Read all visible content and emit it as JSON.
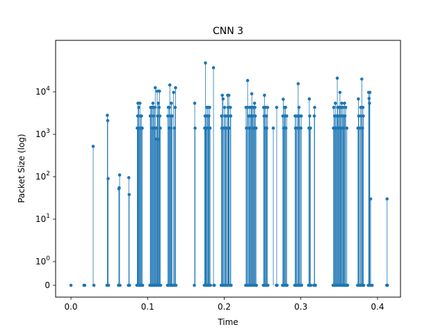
{
  "chart_data": {
    "type": "stem",
    "title": "CNN 3",
    "xlabel": "Time",
    "ylabel": "Packet Size (log)",
    "yscale": "symlog",
    "xlim": [
      -0.02,
      0.43
    ],
    "ylim": [
      -0.5,
      60000
    ],
    "xticks": [
      {
        "value": 0.0,
        "label": "0.0"
      },
      {
        "value": 0.1,
        "label": "0.1"
      },
      {
        "value": 0.2,
        "label": "0.2"
      },
      {
        "value": 0.3,
        "label": "0.3"
      },
      {
        "value": 0.4,
        "label": "0.4"
      }
    ],
    "yticks": [
      {
        "value": 0,
        "label": "0"
      },
      {
        "value": 1,
        "label": "10",
        "exp": "0"
      },
      {
        "value": 10,
        "label": "10",
        "exp": "1"
      },
      {
        "value": 100,
        "label": "10",
        "exp": "2"
      },
      {
        "value": 1000,
        "label": "10",
        "exp": "3"
      },
      {
        "value": 10000,
        "label": "10",
        "exp": "4"
      }
    ],
    "color": "#1f77b4",
    "grid": false,
    "legend": "none",
    "points": [
      [
        0.0,
        0
      ],
      [
        0.017,
        0
      ],
      [
        0.018,
        0
      ],
      [
        0.029,
        520
      ],
      [
        0.03,
        0
      ],
      [
        0.047,
        0
      ],
      [
        0.0475,
        2800
      ],
      [
        0.048,
        2100
      ],
      [
        0.0485,
        90
      ],
      [
        0.049,
        0
      ],
      [
        0.062,
        0
      ],
      [
        0.0625,
        52
      ],
      [
        0.063,
        55
      ],
      [
        0.0635,
        110
      ],
      [
        0.064,
        0
      ],
      [
        0.075,
        0
      ],
      [
        0.0755,
        95
      ],
      [
        0.076,
        38
      ],
      [
        0.0765,
        0
      ],
      [
        0.086,
        0
      ],
      [
        0.0865,
        1400
      ],
      [
        0.087,
        2700
      ],
      [
        0.0875,
        5400
      ],
      [
        0.088,
        1400
      ],
      [
        0.0885,
        4300
      ],
      [
        0.089,
        0
      ],
      [
        0.0895,
        1400
      ],
      [
        0.09,
        5400
      ],
      [
        0.0905,
        2700
      ],
      [
        0.091,
        0
      ],
      [
        0.0915,
        1400
      ],
      [
        0.092,
        2700
      ],
      [
        0.0925,
        0
      ],
      [
        0.093,
        1400
      ],
      [
        0.0935,
        0
      ],
      [
        0.103,
        0
      ],
      [
        0.1035,
        2700
      ],
      [
        0.104,
        4300
      ],
      [
        0.1045,
        0
      ],
      [
        0.105,
        4300
      ],
      [
        0.1055,
        4300
      ],
      [
        0.106,
        1400
      ],
      [
        0.1065,
        0
      ],
      [
        0.107,
        5400
      ],
      [
        0.1075,
        2700
      ],
      [
        0.108,
        4300
      ],
      [
        0.1085,
        0
      ],
      [
        0.109,
        1400
      ],
      [
        0.1095,
        4300
      ],
      [
        0.11,
        12500
      ],
      [
        0.1105,
        0
      ],
      [
        0.111,
        770
      ],
      [
        0.1115,
        1400
      ],
      [
        0.112,
        0
      ],
      [
        0.1125,
        10400
      ],
      [
        0.113,
        2700
      ],
      [
        0.1135,
        760
      ],
      [
        0.114,
        5400
      ],
      [
        0.1145,
        0
      ],
      [
        0.115,
        4300
      ],
      [
        0.1155,
        10400
      ],
      [
        0.116,
        2700
      ],
      [
        0.1165,
        1400
      ],
      [
        0.117,
        0
      ],
      [
        0.126,
        0
      ],
      [
        0.1265,
        2700
      ],
      [
        0.127,
        4300
      ],
      [
        0.1275,
        0
      ],
      [
        0.128,
        1400
      ],
      [
        0.1285,
        4300
      ],
      [
        0.129,
        14500
      ],
      [
        0.1295,
        0
      ],
      [
        0.13,
        2700
      ],
      [
        0.1305,
        1400
      ],
      [
        0.131,
        5400
      ],
      [
        0.1315,
        0
      ],
      [
        0.132,
        2700
      ],
      [
        0.1325,
        0
      ],
      [
        0.134,
        9700
      ],
      [
        0.1345,
        0
      ],
      [
        0.135,
        1400
      ],
      [
        0.1355,
        0
      ],
      [
        0.136,
        4300
      ],
      [
        0.1365,
        12500
      ],
      [
        0.137,
        0
      ],
      [
        0.161,
        0
      ],
      [
        0.1615,
        5400
      ],
      [
        0.162,
        1400
      ],
      [
        0.174,
        0
      ],
      [
        0.1745,
        1400
      ],
      [
        0.175,
        2700
      ],
      [
        0.1755,
        48000
      ],
      [
        0.176,
        2700
      ],
      [
        0.1765,
        1400
      ],
      [
        0.177,
        0
      ],
      [
        0.1775,
        4300
      ],
      [
        0.178,
        2700
      ],
      [
        0.1785,
        0
      ],
      [
        0.179,
        4300
      ],
      [
        0.1795,
        1400
      ],
      [
        0.18,
        2700
      ],
      [
        0.1805,
        0
      ],
      [
        0.181,
        4300
      ],
      [
        0.1815,
        1400
      ],
      [
        0.182,
        0
      ],
      [
        0.186,
        37000
      ],
      [
        0.1865,
        0
      ],
      [
        0.187,
        0
      ],
      [
        0.196,
        0
      ],
      [
        0.1965,
        2700
      ],
      [
        0.197,
        1400
      ],
      [
        0.1975,
        8300
      ],
      [
        0.198,
        0
      ],
      [
        0.1985,
        6800
      ],
      [
        0.199,
        1400
      ],
      [
        0.2,
        0
      ],
      [
        0.2005,
        4300
      ],
      [
        0.201,
        2700
      ],
      [
        0.2015,
        1400
      ],
      [
        0.202,
        0
      ],
      [
        0.2025,
        2700
      ],
      [
        0.203,
        1400
      ],
      [
        0.204,
        0
      ],
      [
        0.2045,
        8300
      ],
      [
        0.205,
        4300
      ],
      [
        0.2055,
        2700
      ],
      [
        0.206,
        8300
      ],
      [
        0.2065,
        1400
      ],
      [
        0.207,
        0
      ],
      [
        0.208,
        4300
      ],
      [
        0.2085,
        2700
      ],
      [
        0.209,
        0
      ],
      [
        0.228,
        0
      ],
      [
        0.2285,
        4300
      ],
      [
        0.229,
        1400
      ],
      [
        0.2295,
        0
      ],
      [
        0.23,
        4300
      ],
      [
        0.2305,
        18500
      ],
      [
        0.231,
        0
      ],
      [
        0.232,
        2700
      ],
      [
        0.2325,
        1400
      ],
      [
        0.233,
        4300
      ],
      [
        0.2335,
        0
      ],
      [
        0.234,
        1400
      ],
      [
        0.2345,
        2700
      ],
      [
        0.235,
        4300
      ],
      [
        0.2355,
        0
      ],
      [
        0.236,
        9000
      ],
      [
        0.2365,
        4300
      ],
      [
        0.237,
        0
      ],
      [
        0.2375,
        2700
      ],
      [
        0.238,
        4300
      ],
      [
        0.2385,
        1400
      ],
      [
        0.239,
        0
      ],
      [
        0.2395,
        5400
      ],
      [
        0.24,
        4300
      ],
      [
        0.2405,
        2700
      ],
      [
        0.241,
        0
      ],
      [
        0.2415,
        1400
      ],
      [
        0.242,
        0
      ],
      [
        0.251,
        0
      ],
      [
        0.2515,
        4300
      ],
      [
        0.252,
        2700
      ],
      [
        0.2525,
        8300
      ],
      [
        0.253,
        0
      ],
      [
        0.2535,
        1400
      ],
      [
        0.254,
        4300
      ],
      [
        0.2545,
        0
      ],
      [
        0.255,
        2700
      ],
      [
        0.2555,
        1400
      ],
      [
        0.256,
        0
      ],
      [
        0.2565,
        4300
      ],
      [
        0.257,
        0
      ],
      [
        0.264,
        1400
      ],
      [
        0.268,
        0
      ],
      [
        0.2685,
        4300
      ],
      [
        0.269,
        0
      ],
      [
        0.276,
        0
      ],
      [
        0.2765,
        2700
      ],
      [
        0.277,
        6700
      ],
      [
        0.2775,
        1400
      ],
      [
        0.278,
        0
      ],
      [
        0.2785,
        4300
      ],
      [
        0.279,
        2700
      ],
      [
        0.2795,
        0
      ],
      [
        0.28,
        4300
      ],
      [
        0.2805,
        1400
      ],
      [
        0.281,
        0
      ],
      [
        0.2815,
        2700
      ],
      [
        0.282,
        0
      ],
      [
        0.292,
        0
      ],
      [
        0.2925,
        2700
      ],
      [
        0.293,
        1400
      ],
      [
        0.2935,
        0
      ],
      [
        0.294,
        2700
      ],
      [
        0.2945,
        1400
      ],
      [
        0.295,
        0
      ],
      [
        0.296,
        2700
      ],
      [
        0.2965,
        15500
      ],
      [
        0.297,
        0
      ],
      [
        0.2975,
        4300
      ],
      [
        0.298,
        1400
      ],
      [
        0.2985,
        2700
      ],
      [
        0.299,
        0
      ],
      [
        0.3,
        1400
      ],
      [
        0.3005,
        2700
      ],
      [
        0.301,
        0
      ],
      [
        0.31,
        0
      ],
      [
        0.3105,
        1400
      ],
      [
        0.311,
        6800
      ],
      [
        0.3115,
        2700
      ],
      [
        0.312,
        0
      ],
      [
        0.3125,
        1400
      ],
      [
        0.313,
        0
      ],
      [
        0.317,
        0
      ],
      [
        0.3175,
        2700
      ],
      [
        0.318,
        4300
      ],
      [
        0.3185,
        0
      ],
      [
        0.319,
        0
      ],
      [
        0.342,
        0
      ],
      [
        0.3425,
        1400
      ],
      [
        0.343,
        4300
      ],
      [
        0.3435,
        0
      ],
      [
        0.344,
        2700
      ],
      [
        0.3445,
        1400
      ],
      [
        0.345,
        5400
      ],
      [
        0.3455,
        0
      ],
      [
        0.346,
        1400
      ],
      [
        0.3465,
        2700
      ],
      [
        0.347,
        0
      ],
      [
        0.3475,
        21000
      ],
      [
        0.348,
        4300
      ],
      [
        0.3485,
        0
      ],
      [
        0.349,
        2700
      ],
      [
        0.3495,
        1400
      ],
      [
        0.35,
        4300
      ],
      [
        0.3505,
        0
      ],
      [
        0.351,
        9700
      ],
      [
        0.3515,
        2700
      ],
      [
        0.352,
        4300
      ],
      [
        0.3525,
        1400
      ],
      [
        0.353,
        0
      ],
      [
        0.3535,
        5400
      ],
      [
        0.354,
        2700
      ],
      [
        0.3545,
        0
      ],
      [
        0.355,
        4300
      ],
      [
        0.3555,
        1400
      ],
      [
        0.356,
        2700
      ],
      [
        0.3565,
        0
      ],
      [
        0.357,
        5400
      ],
      [
        0.3575,
        2700
      ],
      [
        0.358,
        0
      ],
      [
        0.3585,
        4300
      ],
      [
        0.359,
        0
      ],
      [
        0.36,
        1400
      ],
      [
        0.3605,
        0
      ],
      [
        0.361,
        0
      ],
      [
        0.374,
        0
      ],
      [
        0.3745,
        1400
      ],
      [
        0.375,
        6800
      ],
      [
        0.3755,
        2700
      ],
      [
        0.376,
        0
      ],
      [
        0.3765,
        1400
      ],
      [
        0.377,
        0
      ],
      [
        0.378,
        4300
      ],
      [
        0.3785,
        2700
      ],
      [
        0.379,
        0
      ],
      [
        0.3795,
        20000
      ],
      [
        0.38,
        0
      ],
      [
        0.3805,
        1400
      ],
      [
        0.381,
        4300
      ],
      [
        0.3815,
        2700
      ],
      [
        0.382,
        0
      ],
      [
        0.388,
        0
      ],
      [
        0.3885,
        9700
      ],
      [
        0.389,
        7000
      ],
      [
        0.3895,
        5400
      ],
      [
        0.39,
        9700
      ],
      [
        0.3905,
        0
      ],
      [
        0.391,
        30
      ],
      [
        0.393,
        0
      ],
      [
        0.412,
        0
      ],
      [
        0.4125,
        30
      ],
      [
        0.413,
        0
      ]
    ]
  }
}
